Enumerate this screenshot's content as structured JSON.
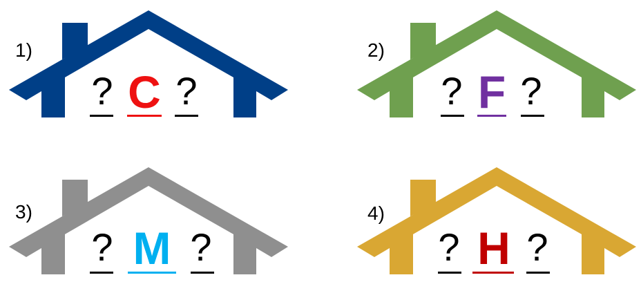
{
  "houses": [
    {
      "number": "1)",
      "left": "?",
      "letter": "C",
      "right": "?",
      "roof_color": "#003f87",
      "letter_color": "#ee1111"
    },
    {
      "number": "2)",
      "left": "?",
      "letter": "F",
      "right": "?",
      "roof_color": "#6fa04f",
      "letter_color": "#7030a0"
    },
    {
      "number": "3)",
      "left": "?",
      "letter": "M",
      "right": "?",
      "roof_color": "#8f8f8f",
      "letter_color": "#00b0f0"
    },
    {
      "number": "4)",
      "left": "?",
      "letter": "H",
      "right": "?",
      "roof_color": "#d9a733",
      "letter_color": "#c00000"
    }
  ]
}
